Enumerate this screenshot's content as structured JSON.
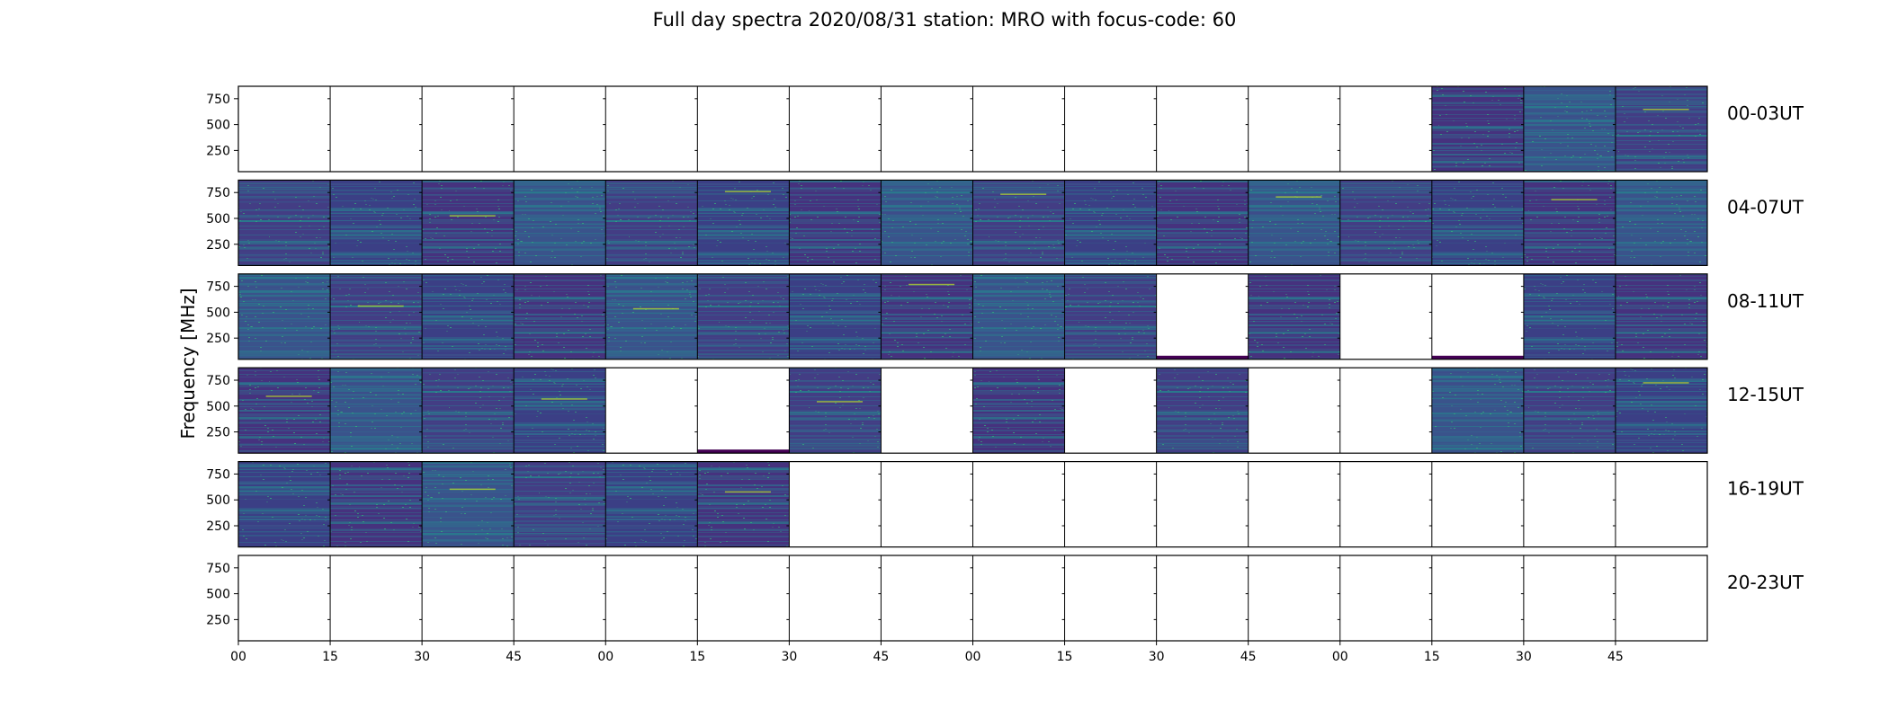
{
  "chart_data": {
    "type": "heatmap",
    "title": "Full day spectra 2020/08/31 station: MRO with focus-code: 60",
    "ylabel": "Frequency [MHz]",
    "ylim": [
      45,
      870
    ],
    "y_ticks": [
      250,
      500,
      750
    ],
    "x_ticks": [
      "00",
      "15",
      "30",
      "45",
      "00",
      "15",
      "30",
      "45",
      "00",
      "15",
      "30",
      "45",
      "00",
      "15",
      "30",
      "45"
    ],
    "minutes_per_panel": 15,
    "colormap": [
      "#440154",
      "#3b528b",
      "#21918c",
      "#5ec962",
      "#fde725"
    ],
    "rows": [
      {
        "label": "00-03UT",
        "panels": [
          "empty",
          "empty",
          "empty",
          "empty",
          "empty",
          "empty",
          "empty",
          "empty",
          "empty",
          "empty",
          "empty",
          "empty",
          "empty",
          "full",
          "full",
          "full"
        ]
      },
      {
        "label": "04-07UT",
        "panels": [
          "full",
          "full",
          "full",
          "full",
          "full",
          "full",
          "full",
          "full",
          "full",
          "full",
          "full",
          "full",
          "full",
          "full",
          "full",
          "full"
        ]
      },
      {
        "label": "08-11UT",
        "panels": [
          "full",
          "full",
          "full",
          "full",
          "full",
          "full",
          "full",
          "full",
          "full",
          "full",
          "sliver",
          "full",
          "empty",
          "sliver",
          "full",
          "full"
        ]
      },
      {
        "label": "12-15UT",
        "panels": [
          "full",
          "full",
          "full",
          "full",
          "empty",
          "sliver",
          "full",
          "empty",
          "full",
          "empty",
          "full",
          "empty",
          "empty",
          "full",
          "full",
          "full"
        ]
      },
      {
        "label": "16-19UT",
        "panels": [
          "full",
          "full",
          "full",
          "full",
          "full",
          "full",
          "empty",
          "empty",
          "empty",
          "empty",
          "empty",
          "empty",
          "empty",
          "empty",
          "empty",
          "empty"
        ]
      },
      {
        "label": "20-23UT",
        "panels": [
          "empty",
          "empty",
          "empty",
          "empty",
          "empty",
          "empty",
          "empty",
          "empty",
          "empty",
          "empty",
          "empty",
          "empty",
          "empty",
          "empty",
          "empty",
          "empty"
        ]
      }
    ]
  }
}
